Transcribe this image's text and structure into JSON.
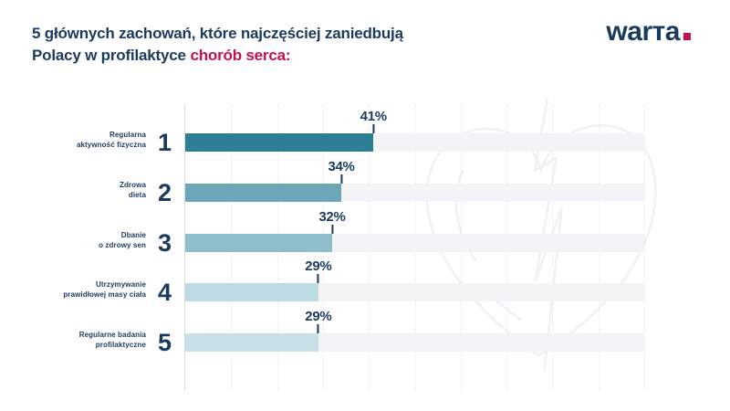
{
  "header": {
    "title_line1": "5 głównych zachowań, które najczęściej zaniedbują",
    "title_line2_prefix": "Polacy w profilaktyce",
    "title_line2_highlight": "chorób serca:",
    "logo_text": "warта"
  },
  "decor": {
    "watermark": "heart-ekg-outline",
    "logo_dot": "red-square"
  },
  "colors": {
    "navy": "#1B3A5F",
    "red": "#C4114A",
    "track": "#F4F4F6",
    "grid": "#E6E6EA",
    "axis": "#D9D9DE",
    "watermark": "#F1F1F4",
    "bar_colors": [
      "#2E7E94",
      "#6BA7B6",
      "#8FBECB",
      "#BCDAE1",
      "#C7E1E6"
    ]
  },
  "chart_data": {
    "type": "bar",
    "orientation": "horizontal",
    "title": "5 głównych zachowań, które najczęściej zaniedbują Polacy w profilaktyce chorób serca:",
    "categories": [
      "Regularna aktywność fizyczna",
      "Zdrowa dieta",
      "Dbanie o zdrowy sen",
      "Utrzymywanie prawidłowej masy ciała",
      "Regularne badania profilaktyczne"
    ],
    "category_lines": [
      [
        "Regularna",
        "aktywność fizyczna"
      ],
      [
        "Zdrowa",
        "dieta"
      ],
      [
        "Dbanie",
        "o zdrowy sen"
      ],
      [
        "Utrzymywanie",
        "prawidłowej masy ciała"
      ],
      [
        "Regularne badania",
        "profilaktyczne"
      ]
    ],
    "ranks": [
      "1",
      "2",
      "3",
      "4",
      "5"
    ],
    "values": [
      41,
      34,
      32,
      29,
      29
    ],
    "value_labels": [
      "41%",
      "34%",
      "32%",
      "29%",
      "29%"
    ],
    "xlabel": "",
    "ylabel": "",
    "xlim": [
      0,
      100
    ],
    "gridline_step_percent": 10,
    "grid": "vertical-dotted",
    "legend": "none"
  }
}
